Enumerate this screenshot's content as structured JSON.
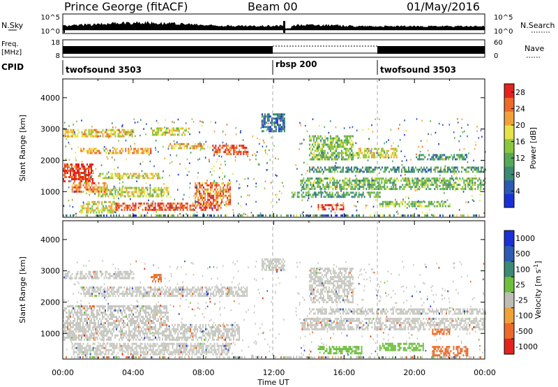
{
  "header": {
    "station": "Prince George (fitACF)",
    "beam": "Beam 00",
    "date": "01/May/2016"
  },
  "panels": {
    "nsky": {
      "left_label": "N.Sky",
      "right_label": "N.Search",
      "left_ticks": [
        "10^5",
        "10^0"
      ],
      "right_ticks": [
        "10^5",
        "10^0"
      ]
    },
    "freq": {
      "left_label_1": "Freq.",
      "left_label_2": "[MHz]",
      "left_ticks": [
        "18",
        "8"
      ],
      "right_ticks": [
        "60",
        "0"
      ],
      "right_label": "Nave"
    },
    "cpid": {
      "label": "CPID",
      "segments": [
        {
          "name": "twofsound 3503",
          "start_h": 0,
          "end_h": 12
        },
        {
          "name": "rbsp 200",
          "start_h": 12,
          "end_h": 18
        },
        {
          "name": "twofsound 3503",
          "start_h": 18,
          "end_h": 24
        }
      ]
    }
  },
  "colors": {
    "power": [
      "#1b2fd6",
      "#2c5bb3",
      "#3b8a73",
      "#57a857",
      "#8cc63e",
      "#e6e34a",
      "#f0a23a",
      "#ec6a2a",
      "#e3231f"
    ],
    "velocity": [
      "#1b2fd6",
      "#2c5bb3",
      "#3b8a73",
      "#6fbf3f",
      "#bdbdb4",
      "#f0a23a",
      "#ec6a2a",
      "#e3231f"
    ],
    "ground": "#c8c8c2"
  },
  "chart_data": [
    {
      "type": "heatmap",
      "name": "power",
      "xlabel": "",
      "ylabel": "Slant Range [km]",
      "xlim": [
        0,
        24
      ],
      "ylim": [
        180,
        4600
      ],
      "yticks": [
        1000,
        2000,
        3000,
        4000
      ],
      "colorbar": {
        "label": "Power [dB]",
        "ticks": [
          "4",
          "8",
          "12",
          "16",
          "20",
          "24",
          "28"
        ],
        "range": [
          0,
          30
        ]
      },
      "bands": [
        {
          "t0": 0.1,
          "t1": 4.0,
          "r0": 2780,
          "r1": 3000,
          "v": 20
        },
        {
          "t0": 5.0,
          "t1": 7.0,
          "r0": 2820,
          "r1": 3050,
          "v": 18
        },
        {
          "t0": 1.0,
          "t1": 5.0,
          "r0": 2200,
          "r1": 2400,
          "v": 22
        },
        {
          "t0": 6.0,
          "t1": 8.0,
          "r0": 2350,
          "r1": 2550,
          "v": 20
        },
        {
          "t0": 8.5,
          "t1": 10.5,
          "r0": 2200,
          "r1": 2500,
          "v": 26
        },
        {
          "t0": 0.0,
          "t1": 1.7,
          "r0": 1300,
          "r1": 1900,
          "v": 28
        },
        {
          "t0": 2.0,
          "t1": 5.5,
          "r0": 1450,
          "r1": 1600,
          "v": 18
        },
        {
          "t0": 0.5,
          "t1": 2.5,
          "r0": 1000,
          "r1": 1300,
          "v": 24
        },
        {
          "t0": 2.0,
          "t1": 6.0,
          "r0": 850,
          "r1": 1150,
          "v": 17
        },
        {
          "t0": 1.0,
          "t1": 3.0,
          "r0": 300,
          "r1": 700,
          "v": 18
        },
        {
          "t0": 3.0,
          "t1": 9.0,
          "r0": 400,
          "r1": 650,
          "v": 27
        },
        {
          "t0": 7.5,
          "t1": 9.5,
          "r0": 600,
          "r1": 1300,
          "v": 24
        },
        {
          "t0": 11.3,
          "t1": 12.6,
          "r0": 2900,
          "r1": 3500,
          "v": 6
        },
        {
          "t0": 14.0,
          "t1": 16.5,
          "r0": 2000,
          "r1": 2800,
          "v": 14
        },
        {
          "t0": 16.5,
          "t1": 19.0,
          "r0": 2100,
          "r1": 2400,
          "v": 18
        },
        {
          "t0": 13.5,
          "t1": 24.0,
          "r0": 1100,
          "r1": 1450,
          "v": 13
        },
        {
          "t0": 14.0,
          "t1": 24.0,
          "r0": 1650,
          "r1": 1800,
          "v": 10
        },
        {
          "t0": 13.0,
          "t1": 18.0,
          "r0": 800,
          "r1": 1000,
          "v": 11
        },
        {
          "t0": 14.5,
          "t1": 16.0,
          "r0": 400,
          "r1": 600,
          "v": 26
        },
        {
          "t0": 18.0,
          "t1": 22.0,
          "r0": 500,
          "r1": 700,
          "v": 14
        },
        {
          "t0": 20.0,
          "t1": 23.0,
          "r0": 2000,
          "r1": 2200,
          "v": 10
        }
      ]
    },
    {
      "type": "heatmap",
      "name": "velocity",
      "xlabel": "Time UT",
      "ylabel": "Slant Range [km]",
      "xlim": [
        0,
        24
      ],
      "ylim": [
        180,
        4600
      ],
      "yticks": [
        1000,
        2000,
        3000,
        4000
      ],
      "xticks": [
        "00:00",
        "04:00",
        "08:00",
        "12:00",
        "16:00",
        "20:00",
        "00:00"
      ],
      "colorbar": {
        "label": "Velocity [m s",
        "label_superscript": "-1",
        "label_close": "]",
        "ticks": [
          "1000",
          "500",
          "100",
          "25",
          "-25",
          "-100",
          "-500",
          "-1000"
        ]
      },
      "bands": [
        {
          "t0": 0.1,
          "t1": 4.0,
          "r0": 2780,
          "r1": 3000,
          "v": 0
        },
        {
          "t0": 5.0,
          "t1": 5.6,
          "r0": 2650,
          "r1": 2900,
          "v": -400
        },
        {
          "t0": 1.0,
          "t1": 10.5,
          "r0": 2200,
          "r1": 2500,
          "v": 0
        },
        {
          "t0": 0.0,
          "t1": 6.0,
          "r0": 1300,
          "r1": 1900,
          "v": 0
        },
        {
          "t0": 0.0,
          "t1": 10.0,
          "r0": 800,
          "r1": 1300,
          "v": 0
        },
        {
          "t0": 0.5,
          "t1": 9.5,
          "r0": 300,
          "r1": 700,
          "v": 0
        },
        {
          "t0": 11.3,
          "t1": 12.6,
          "r0": 3000,
          "r1": 3400,
          "v": 0
        },
        {
          "t0": 14.0,
          "t1": 16.5,
          "r0": 2000,
          "r1": 3100,
          "v": 0
        },
        {
          "t0": 13.5,
          "t1": 24.0,
          "r0": 1100,
          "r1": 1500,
          "v": 0
        },
        {
          "t0": 14.0,
          "t1": 24.0,
          "r0": 1650,
          "r1": 1800,
          "v": 0
        },
        {
          "t0": 14.5,
          "t1": 17.0,
          "r0": 350,
          "r1": 600,
          "v": 120
        },
        {
          "t0": 18.0,
          "t1": 20.5,
          "r0": 450,
          "r1": 700,
          "v": 120
        },
        {
          "t0": 21.0,
          "t1": 23.0,
          "r0": 300,
          "r1": 600,
          "v": -300
        },
        {
          "t0": 21.0,
          "t1": 22.0,
          "r0": 950,
          "r1": 1150,
          "v": -200
        }
      ]
    }
  ]
}
